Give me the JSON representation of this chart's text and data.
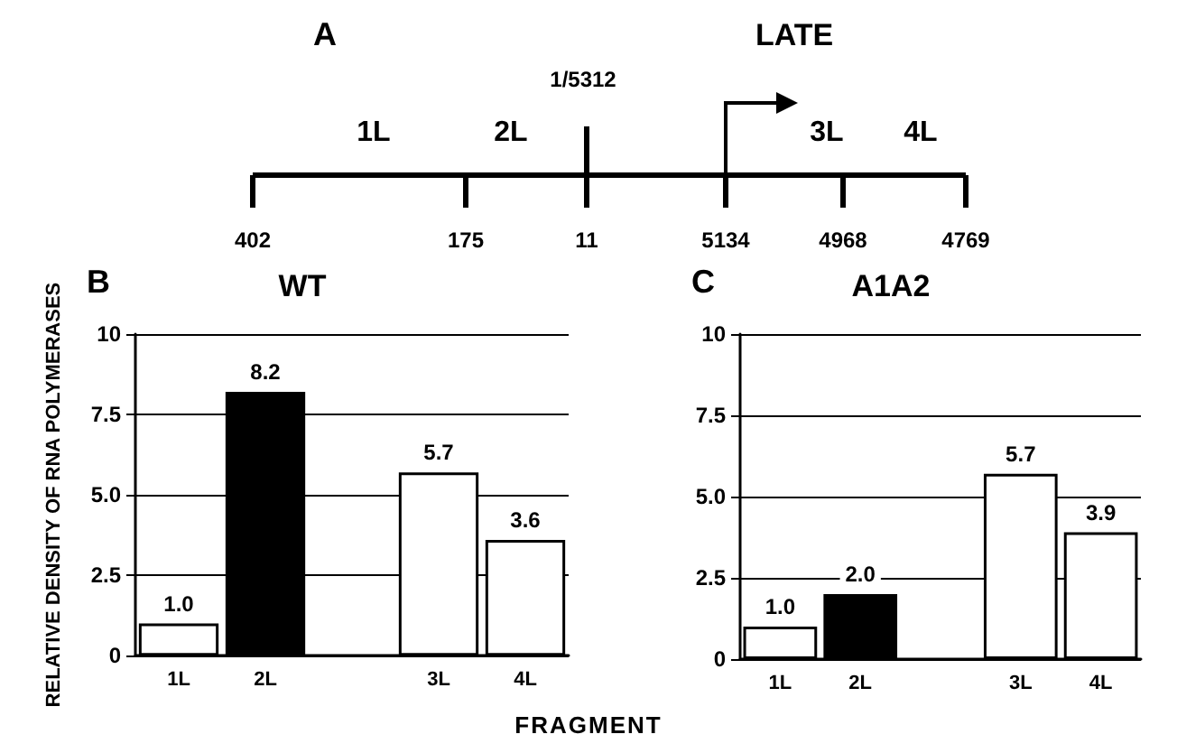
{
  "chart_data": [
    {
      "type": "other",
      "annotations": [
        "A",
        "LATE",
        "1L",
        "2L",
        "1/5312",
        "3L",
        "4L",
        "402",
        "175",
        "11",
        "5134",
        "4968",
        "4769"
      ]
    },
    {
      "type": "bar",
      "title": "WT",
      "annotations": [
        "B"
      ],
      "ylabel": "RELATIVE DENSITY OF RNA POLYMERASES",
      "categories": [
        "1L",
        "2L",
        null,
        "3L",
        "4L"
      ],
      "values": [
        1.0,
        8.2,
        null,
        5.7,
        3.6
      ],
      "colors": [
        "#ffffff",
        "#000000",
        "#ffffff",
        "#ffffff",
        "#ffffff"
      ],
      "value_labels": [
        "1.0",
        "8.2",
        null,
        "5.7",
        "3.6"
      ],
      "ylim": [
        0,
        10
      ],
      "yticks": [
        0,
        2.5,
        {
          "value": 5,
          "label": "5.0"
        },
        7.5,
        10
      ],
      "grid": "y"
    },
    {
      "type": "bar",
      "title": "A1A2",
      "annotations": [
        "C"
      ],
      "xlabel": "FRAGMENT",
      "categories": [
        "1L",
        "2L",
        null,
        "3L",
        "4L"
      ],
      "values": [
        1.0,
        2.0,
        null,
        5.7,
        3.9
      ],
      "colors": [
        "#ffffff",
        "#000000",
        "#ffffff",
        "#ffffff",
        "#ffffff"
      ],
      "value_labels": [
        "1.0",
        "2.0",
        null,
        "5.7",
        "3.9"
      ],
      "ylim": [
        0,
        10
      ],
      "yticks": [
        0,
        2.5,
        {
          "value": 5,
          "label": "5.0"
        },
        7.5,
        10
      ],
      "grid": "y"
    }
  ]
}
